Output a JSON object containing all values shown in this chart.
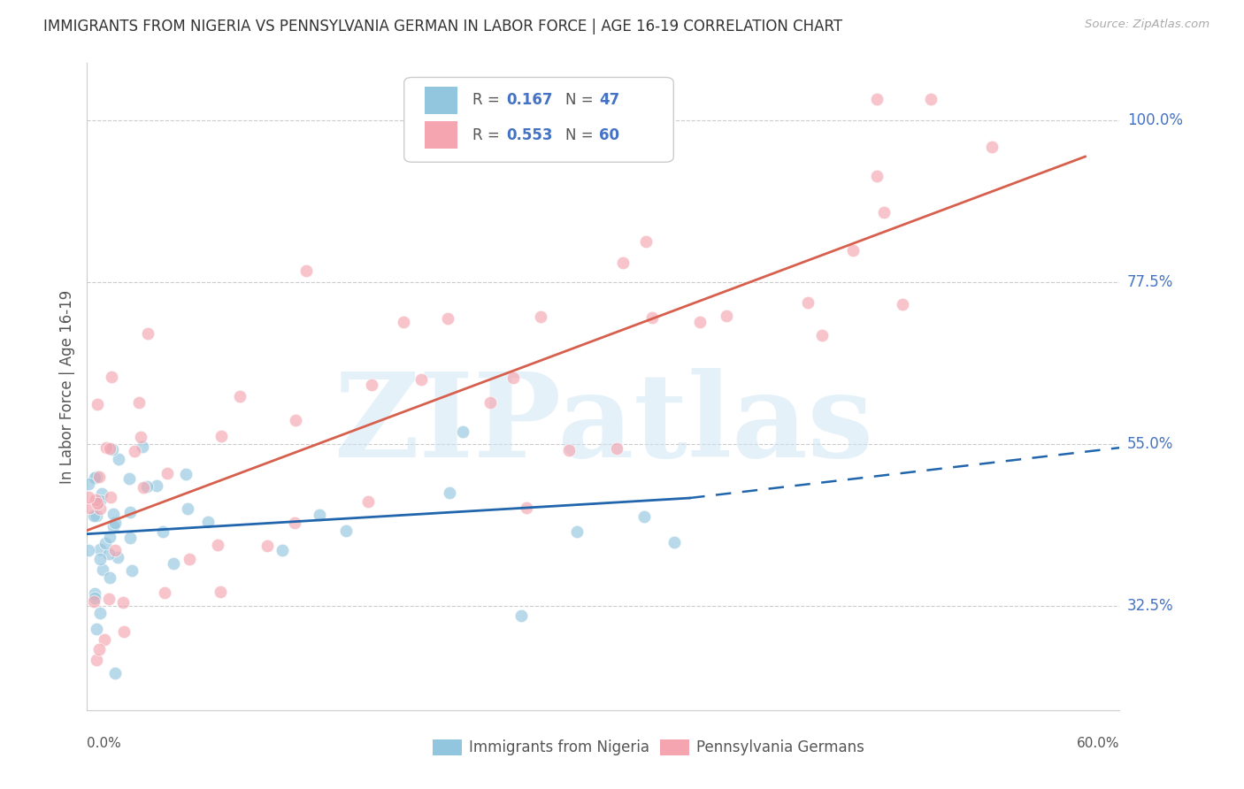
{
  "title": "IMMIGRANTS FROM NIGERIA VS PENNSYLVANIA GERMAN IN LABOR FORCE | AGE 16-19 CORRELATION CHART",
  "source": "Source: ZipAtlas.com",
  "ylabel": "In Labor Force | Age 16-19",
  "nigeria_R": 0.167,
  "nigeria_N": 47,
  "penn_R": 0.553,
  "penn_N": 60,
  "nigeria_color": "#92c5de",
  "penn_color": "#f4a5b0",
  "nigeria_line_color": "#2166ac",
  "penn_line_color": "#d6604d",
  "xlim": [
    0.0,
    0.6
  ],
  "ylim": [
    0.18,
    1.08
  ],
  "ytick_positions": [
    0.325,
    0.55,
    0.775,
    1.0
  ],
  "ytick_labels": [
    "32.5%",
    "55.0%",
    "77.5%",
    "100.0%"
  ],
  "watermark": "ZIPatlas",
  "legend_label1": "Immigrants from Nigeria",
  "legend_label2": "Pennsylvania Germans",
  "nig_line_x0": 0.0,
  "nig_line_y0": 0.425,
  "nig_line_x1": 0.35,
  "nig_line_y1": 0.475,
  "nig_line_dash_x1": 0.6,
  "nig_line_dash_y1": 0.545,
  "pen_line_x0": 0.0,
  "pen_line_y0": 0.43,
  "pen_line_x1": 0.58,
  "pen_line_y1": 0.95
}
